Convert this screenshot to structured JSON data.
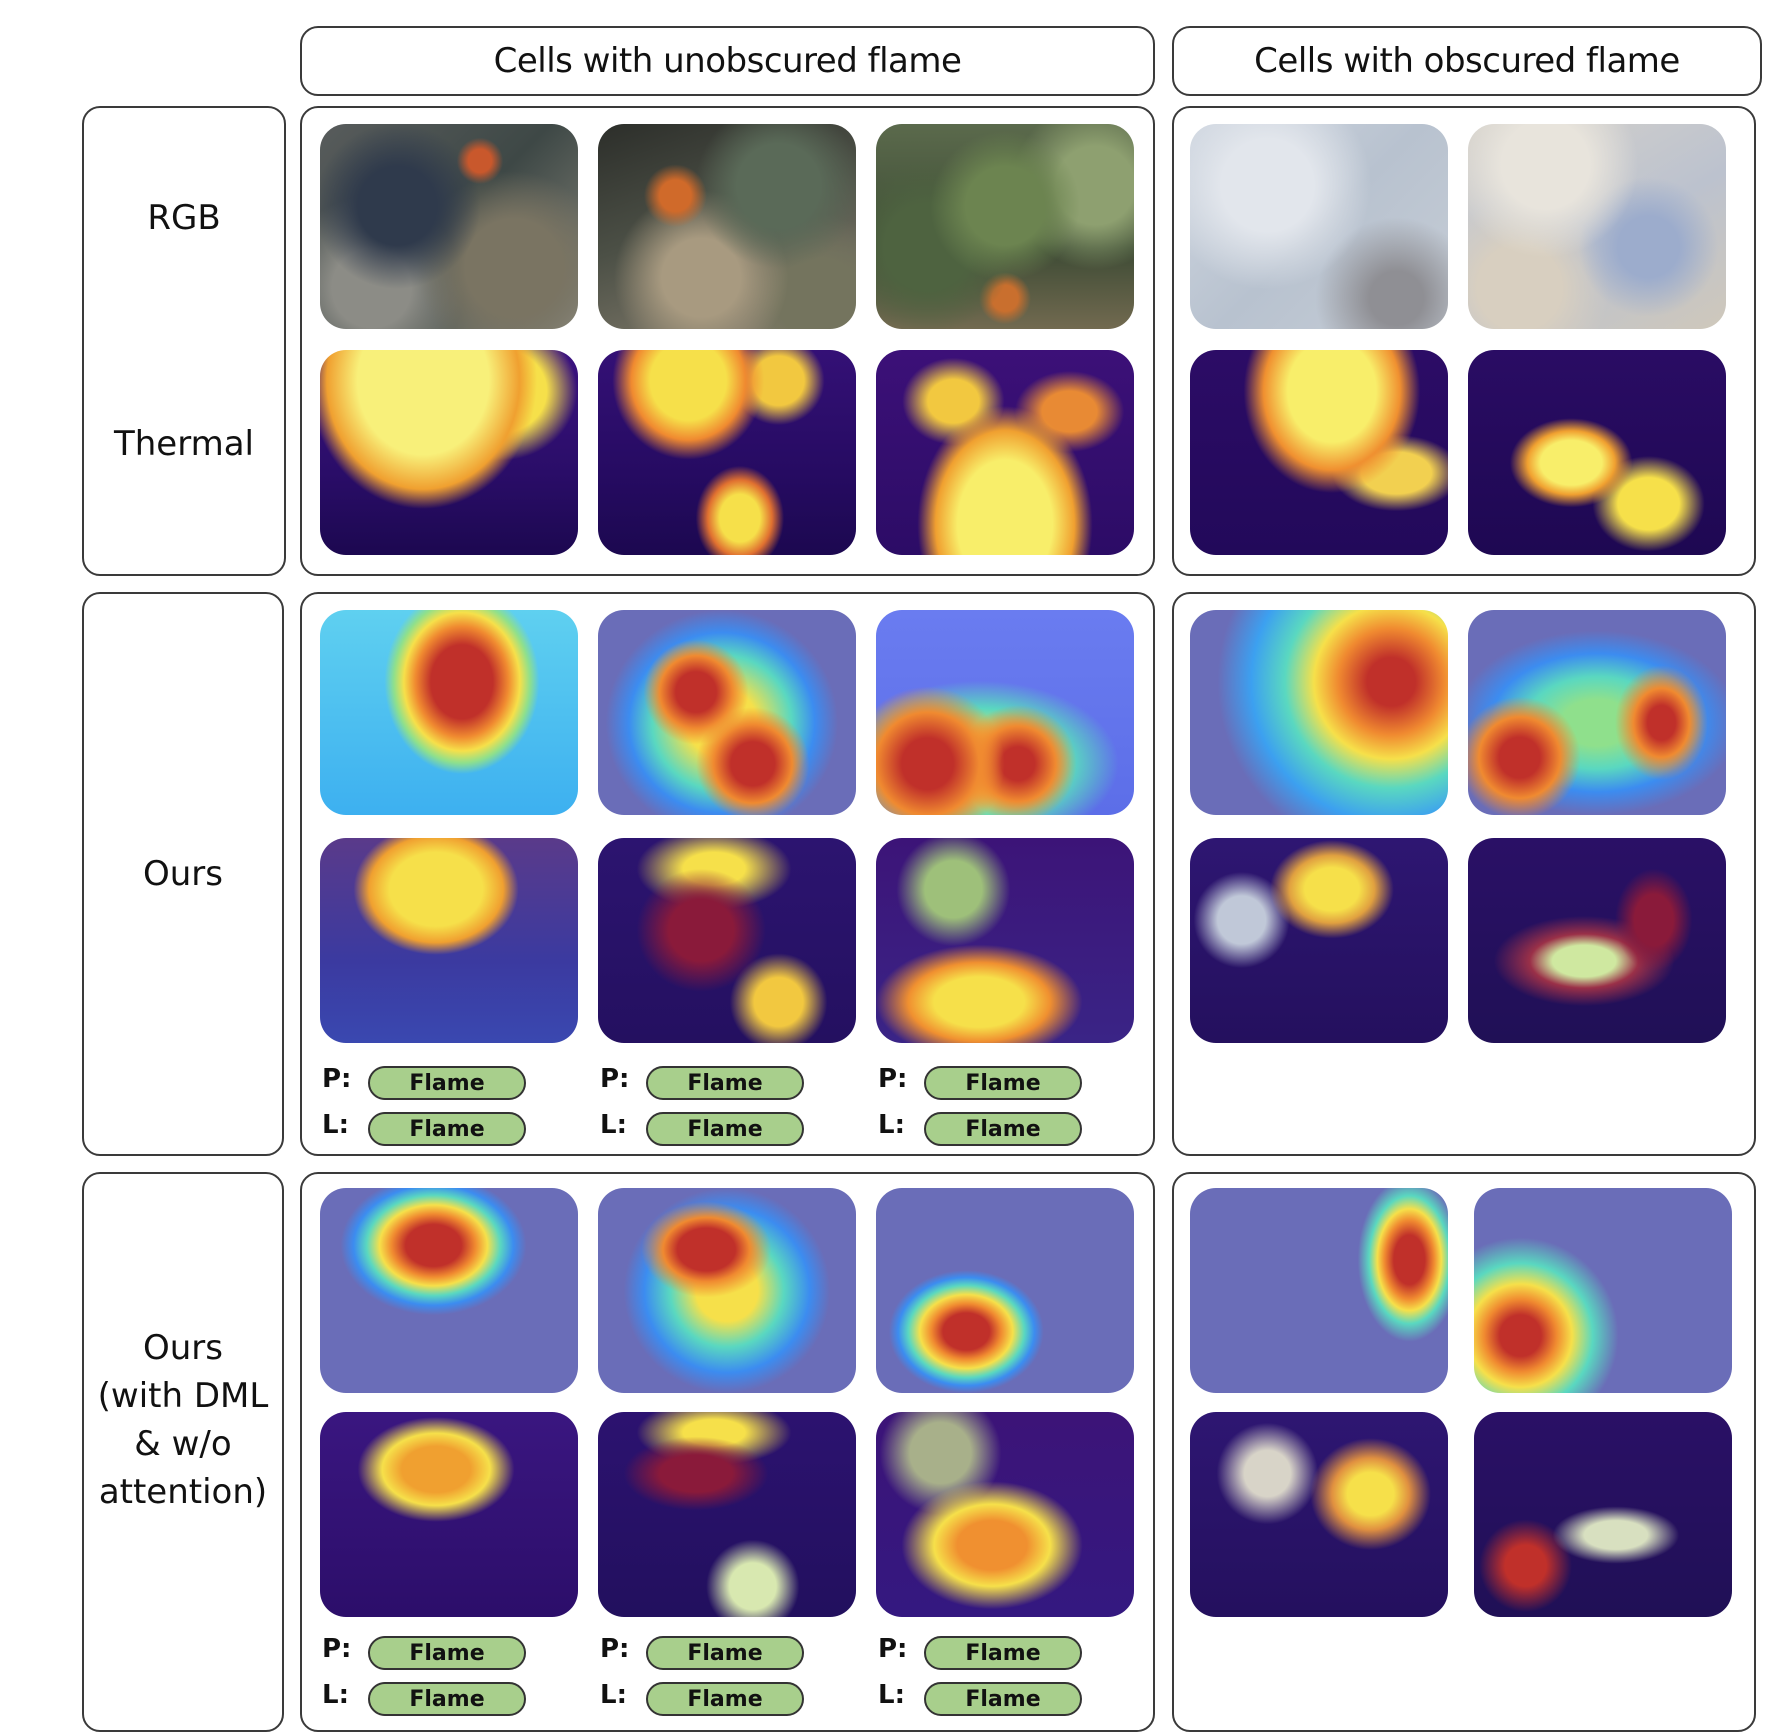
{
  "headers": {
    "unobscured": "Cells with unobscured flame",
    "obscured": "Cells with obscured flame"
  },
  "rows": {
    "rgb": "RGB",
    "thermal": "Thermal",
    "ours": "Ours",
    "ours_dml": [
      "Ours",
      "(with DML",
      "& w/o",
      "attention)"
    ]
  },
  "prediction_prefix": "P:",
  "label_prefix": "L:",
  "ours_preds": [
    {
      "p": "Flame",
      "l": "Flame"
    },
    {
      "p": "Flame",
      "l": "Flame"
    },
    {
      "p": "Flame",
      "l": "Flame"
    }
  ],
  "dml_preds": [
    {
      "p": "Flame",
      "l": "Flame"
    },
    {
      "p": "Flame",
      "l": "Flame"
    },
    {
      "p": "Flame",
      "l": "Flame"
    }
  ],
  "colors": {
    "flame_pill": "#a8cf8c",
    "thermal_bg": "#2e0f6e",
    "thermal_hot": "#f6e04a",
    "heatmap_bg": "#6a6db8",
    "heatmap_hot": "#c62828"
  }
}
